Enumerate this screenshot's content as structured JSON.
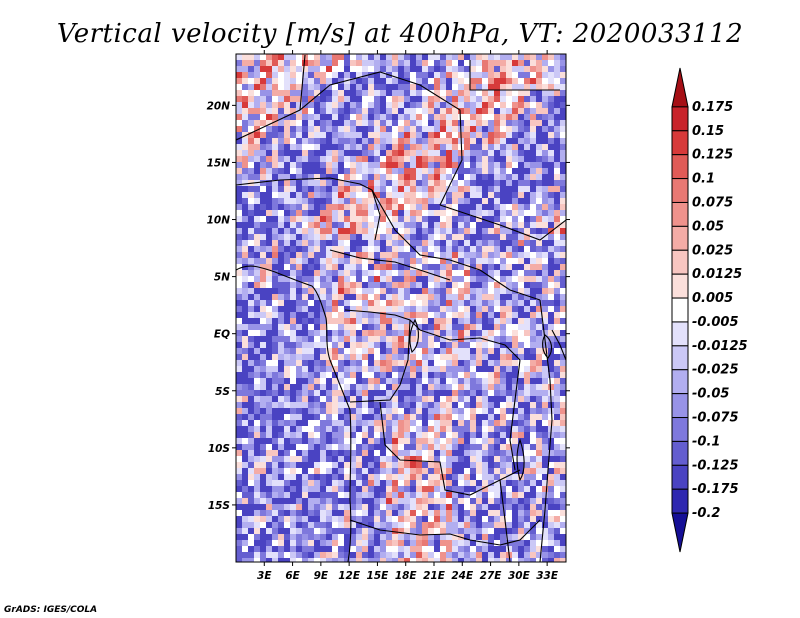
{
  "chart_data": {
    "type": "heatmap",
    "title": "Vertical velocity [m/s] at 400hPa, VT: 2020033112",
    "xlabel": "",
    "ylabel": "",
    "x_ticks": [
      "3E",
      "6E",
      "9E",
      "12E",
      "15E",
      "18E",
      "21E",
      "24E",
      "27E",
      "30E",
      "33E"
    ],
    "y_ticks": [
      "20N",
      "15N",
      "10N",
      "5N",
      "EQ",
      "5S",
      "10S",
      "15S"
    ],
    "lon_range": [
      0,
      35
    ],
    "lat_range": [
      -20,
      24.5
    ],
    "colorbar": {
      "labels": [
        "0.175",
        "0.15",
        "0.125",
        "0.1",
        "0.075",
        "0.05",
        "0.025",
        "0.0125",
        "0.005",
        "-0.005",
        "-0.0125",
        "-0.025",
        "-0.05",
        "-0.075",
        "-0.1",
        "-0.125",
        "-0.175",
        "-0.2"
      ],
      "colors": [
        "#a50f15",
        "#c8232a",
        "#d73a3a",
        "#e05b57",
        "#e87873",
        "#ef928c",
        "#f4aca6",
        "#f8c6c1",
        "#fbdfdb",
        "#ffffff",
        "#e3e1fb",
        "#cbc8f6",
        "#b2aef0",
        "#9893e7",
        "#7e78dc",
        "#645ed0",
        "#4a43c2",
        "#2f28b0",
        "#150f96"
      ],
      "extend": "both"
    },
    "credit": "GrADS: IGES/COLA"
  }
}
